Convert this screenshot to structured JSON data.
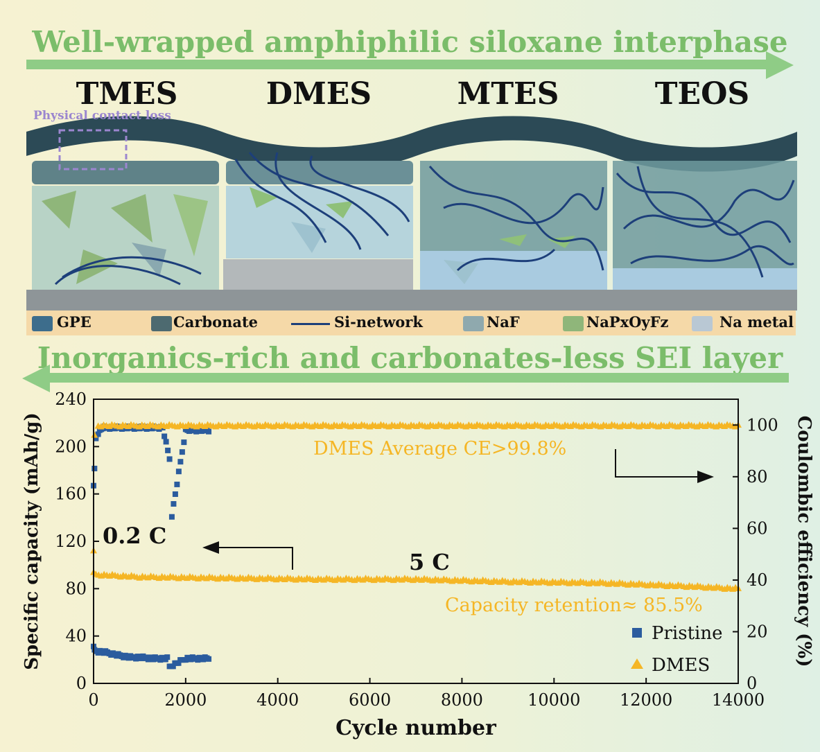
{
  "top_title": "Well-wrapped amphiphilic siloxane interphase",
  "bottom_title": "Inorganics-rich and carbonates-less SEI layer",
  "panels": [
    "TMES",
    "DMES",
    "MTES",
    "TEOS"
  ],
  "annotation_contact_loss": "Physical contact loss",
  "legend": [
    "GPE",
    "Carbonate",
    "Si-network",
    "NaF",
    "NaPxOyFz",
    "Na metal"
  ],
  "colors": {
    "arrow": "#8fcc86",
    "title": "#7bbd6a",
    "pristine": "#2b5c9e",
    "dmes": "#f5b625",
    "legend_bg": "#f5d9a8",
    "dark_layer": "#2c4a56"
  },
  "chart_data": {
    "type": "scatter",
    "xlabel": "Cycle number",
    "ylabel": "Specific capacity (mAh/g)",
    "y2label": "Coulombic efficiency (%)",
    "xlim": [
      0,
      14000
    ],
    "ylim": [
      0,
      240
    ],
    "y2lim": [
      0,
      110
    ],
    "xticks": [
      "0",
      "2000",
      "4000",
      "6000",
      "8000",
      "10000",
      "12000",
      "14000"
    ],
    "yticks": [
      "0",
      "40",
      "80",
      "120",
      "160",
      "200",
      "240"
    ],
    "y2ticks": [
      "0",
      "20",
      "40",
      "60",
      "80",
      "100"
    ],
    "series": [
      {
        "name": "Pristine",
        "marker": "square",
        "capacity": {
          "x": [
            0,
            20,
            100,
            300,
            500,
            800,
            1000,
            1300,
            1600,
            1650,
            2000,
            2300,
            2500
          ],
          "y": [
            30,
            28,
            27,
            26,
            24,
            22,
            22,
            21,
            21,
            14,
            21,
            21,
            21
          ]
        },
        "ce": {
          "x": [
            0,
            20,
            50,
            100,
            200,
            500,
            1000,
            1500,
            1650,
            1700,
            2000,
            2500
          ],
          "y": [
            76,
            83,
            95,
            97,
            99,
            99,
            99,
            99,
            87,
            65,
            98,
            98
          ]
        }
      },
      {
        "name": "DMES",
        "marker": "triangle",
        "capacity": {
          "x": [
            0,
            50,
            1000,
            3000,
            5000,
            7000,
            9000,
            11000,
            13000,
            14000
          ],
          "y": [
            93,
            92,
            90,
            89,
            88,
            88,
            86,
            85,
            82,
            80
          ]
        },
        "ce": {
          "x": [
            0,
            20,
            100,
            2000,
            6000,
            10000,
            14000
          ],
          "y": [
            51,
            96,
            99.8,
            99.8,
            99.8,
            99.8,
            99.8
          ]
        }
      }
    ],
    "annotations": {
      "ce_avg": "DMES Average CE>99.8%",
      "rate_low": "0.2 C",
      "rate_high": "5 C",
      "retention": "Capacity retention≈ 85.5%"
    }
  }
}
